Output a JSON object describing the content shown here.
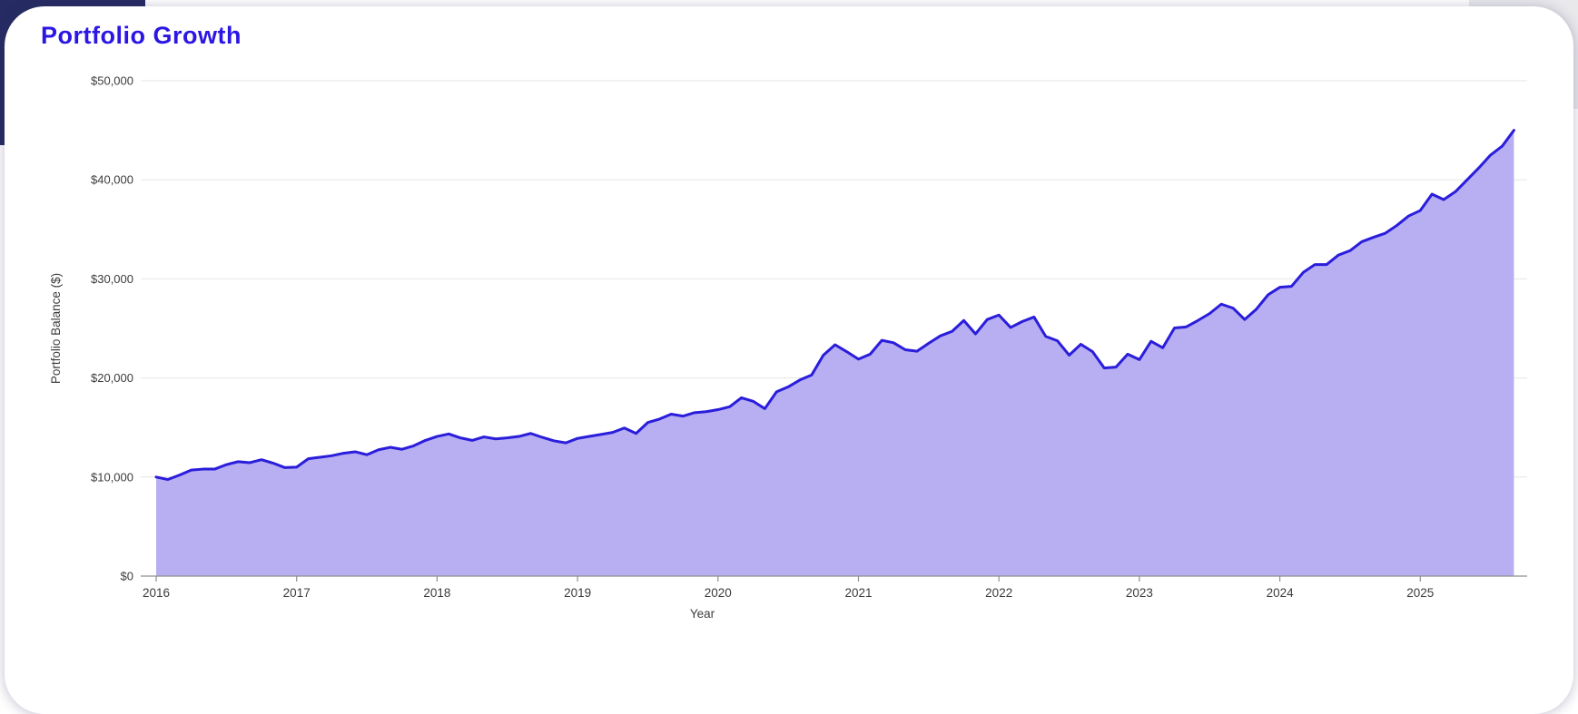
{
  "page": {
    "title": "Portfolio Growth"
  },
  "chart_data": {
    "type": "area",
    "title": "Portfolio Growth",
    "xlabel": "Year",
    "ylabel": "Portfolio Balance ($)",
    "frequency": "monthly",
    "x_start": "2016-01",
    "x_end": "2025-09",
    "ylim": [
      0,
      50000
    ],
    "grid": "horizontal",
    "legend_position": "none",
    "y_ticks": [
      {
        "value": 0,
        "label": "$0"
      },
      {
        "value": 10000,
        "label": "$10,000"
      },
      {
        "value": 20000,
        "label": "$20,000"
      },
      {
        "value": 30000,
        "label": "$30,000"
      },
      {
        "value": 40000,
        "label": "$40,000"
      },
      {
        "value": 50000,
        "label": "$50,000"
      }
    ],
    "x_ticks": [
      {
        "year": 2016,
        "label": "2016"
      },
      {
        "year": 2017,
        "label": "2017"
      },
      {
        "year": 2018,
        "label": "2018"
      },
      {
        "year": 2019,
        "label": "2019"
      },
      {
        "year": 2020,
        "label": "2020"
      },
      {
        "year": 2021,
        "label": "2021"
      },
      {
        "year": 2022,
        "label": "2022"
      },
      {
        "year": 2023,
        "label": "2023"
      },
      {
        "year": 2024,
        "label": "2024"
      },
      {
        "year": 2025,
        "label": "2025"
      }
    ],
    "series": [
      {
        "name": "Portfolio Balance",
        "monthly_values": [
          10000,
          9750,
          10200,
          10700,
          10800,
          10800,
          11250,
          11550,
          11450,
          11750,
          11400,
          10950,
          11000,
          11850,
          12000,
          12150,
          12400,
          12550,
          12250,
          12750,
          13000,
          12800,
          13150,
          13700,
          14100,
          14350,
          13950,
          13700,
          14050,
          13850,
          13950,
          14100,
          14400,
          14000,
          13650,
          13450,
          13900,
          14100,
          14300,
          14500,
          14950,
          14400,
          15500,
          15850,
          16350,
          16150,
          16500,
          16600,
          16800,
          17100,
          18000,
          17650,
          16900,
          18600,
          19100,
          19800,
          20300,
          22300,
          23350,
          22650,
          21900,
          22400,
          23800,
          23550,
          22850,
          22700,
          23500,
          24250,
          24700,
          25800,
          24450,
          25900,
          26350,
          25100,
          25700,
          26150,
          24200,
          23750,
          22300,
          23400,
          22650,
          21000,
          21100,
          22400,
          21850,
          23700,
          23050,
          25050,
          25150,
          25800,
          26500,
          27450,
          27050,
          25900,
          26950,
          28400,
          29150,
          29250,
          30650,
          31450,
          31450,
          32400,
          32850,
          33750,
          34200,
          34600,
          35400,
          36350,
          36900,
          38550,
          38000,
          38800,
          40000,
          41200,
          42500,
          43400,
          45000
        ]
      }
    ],
    "colors": {
      "title": "#2b16e3",
      "line": "#2a1ddb",
      "fill": "#b7aff2",
      "gridline": "#e6e6e6",
      "axis_line": "#8f8f8f",
      "tick_label": "#3c3c3c",
      "axis_title": "#3c3c3c",
      "page_backdrop": "#262c63",
      "card_background": "#ffffff"
    }
  }
}
